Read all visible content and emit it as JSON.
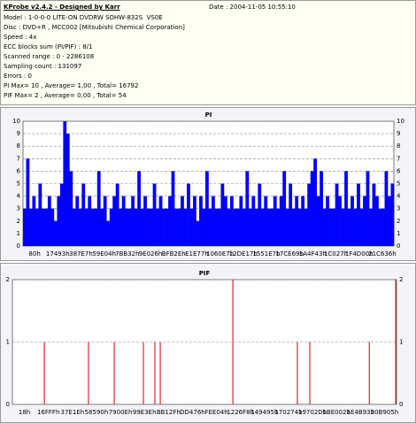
{
  "header": {
    "title": "KProbe v2.4.2 - Designed by Karr",
    "date": "Date : 2004-11-05 10:55:10",
    "lines": [
      "Model : 1-0-0-0 LITE-ON DVDRW SOHW-832S  VS0E",
      "Disc : DVD+R , MCC002 [Mitsubishi Chemical Corporation]",
      "Speed : 4x",
      "ECC blocks sum (PI/PIF) : 8/1",
      "Scanned range : 0 - 2286108",
      "Sampling count : 131097",
      "Errors : 0",
      "PI Max= 10 , Average= 1,00 , Total= 16792",
      "PIF Max= 2 , Average= 0,00 , Total= 54"
    ]
  },
  "chart_data": [
    {
      "type": "bar",
      "title": "PI",
      "color": "#0000ff",
      "grid": true,
      "values": [
        3,
        7,
        3,
        4,
        3,
        5,
        3,
        3,
        4,
        3,
        2,
        4,
        5,
        10,
        9,
        6,
        3,
        4,
        3,
        5,
        3,
        4,
        3,
        3,
        6,
        3,
        4,
        2,
        3,
        4,
        5,
        3,
        4,
        3,
        3,
        4,
        3,
        6,
        3,
        4,
        3,
        3,
        5,
        3,
        4,
        3,
        3,
        4,
        6,
        3,
        3,
        4,
        3,
        5,
        3,
        4,
        2,
        4,
        3,
        6,
        3,
        4,
        3,
        3,
        5,
        4,
        3,
        4,
        3,
        3,
        4,
        3,
        6,
        3,
        4,
        3,
        5,
        3,
        4,
        3,
        3,
        4,
        3,
        4,
        6,
        3,
        5,
        3,
        4,
        3,
        4,
        3,
        5,
        6,
        7,
        4,
        6,
        3,
        4,
        3,
        3,
        5,
        4,
        3,
        6,
        3,
        4,
        3,
        5,
        3,
        4,
        6,
        3,
        5,
        4,
        3,
        3,
        6,
        4,
        5
      ],
      "ylim": [
        0,
        10
      ],
      "yticks": [
        0,
        1,
        2,
        3,
        4,
        5,
        6,
        7,
        8,
        9,
        10
      ],
      "xtick_labels": [
        "80h",
        "17493h",
        "387E7h",
        "59E04h",
        "7BB32h",
        "9E026h",
        "BFB2Eh",
        "E1E77h",
        "1060E7h",
        "12DE17h",
        "1551E7h",
        "17CE69h",
        "1A4F43h",
        "1C027h",
        "1F4D00h",
        "21C636h"
      ]
    },
    {
      "type": "stem",
      "title": "PIF",
      "color": "#cc0000",
      "grid": true,
      "x": [
        190000,
        453000,
        606000,
        780000,
        848000,
        880000,
        1312000,
        1696000,
        1770000,
        2124000,
        2281000
      ],
      "values": [
        1,
        1,
        1,
        1,
        1,
        1,
        2,
        1,
        1,
        1,
        2
      ],
      "xlim": [
        0,
        2286108
      ],
      "ylim": [
        0,
        2
      ],
      "yticks": [
        0,
        1,
        2
      ],
      "xtick_labels": [
        "18h",
        "16FFFh",
        "37E1Eh",
        "58590h",
        "7900Eh",
        "99E3Eh",
        "BB12Fh",
        "DD476h",
        "FEE04h",
        "1226F8h",
        "149495h",
        "170274h",
        "19702Dh",
        "1BE002h",
        "1E4B93h",
        "20B905h"
      ]
    }
  ]
}
